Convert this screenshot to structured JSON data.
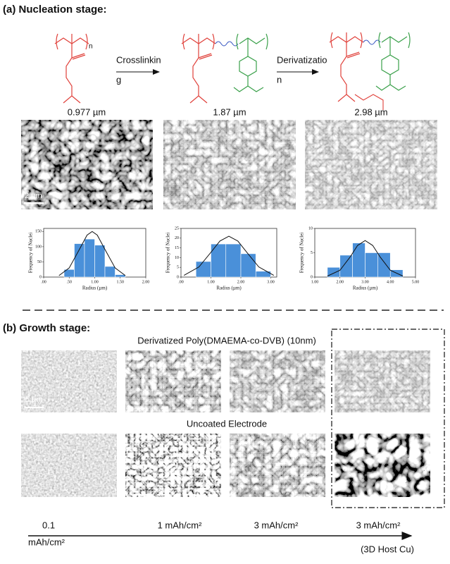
{
  "figure": {
    "nucleation": {
      "title": "(a) Nucleation stage:",
      "repeat_unit": "n",
      "arrows": [
        {
          "lines": [
            "Crosslinkin",
            "g"
          ]
        },
        {
          "lines": [
            "Derivatizatio",
            "n"
          ]
        }
      ],
      "thicknesses": [
        "0.977 µm",
        "1.87 µm",
        "2.98 µm"
      ],
      "scale_bar": "2 µm"
    },
    "growth": {
      "title": "(b)  Growth stage:",
      "coated_label": "Derivatized Poly(DMAEMA-co-DVB) (10nm)",
      "uncoated_label": "Uncoated Electrode",
      "scale_bar": "5 µm",
      "capacities": [
        {
          "lines": [
            "0.1",
            "mAh/cm²"
          ]
        },
        {
          "lines": [
            "1 mAh/cm²"
          ]
        },
        {
          "lines": [
            "3 mAh/cm²"
          ]
        },
        {
          "lines": [
            "3 mAh/cm²",
            "(3D Host Cu)"
          ]
        }
      ]
    }
  },
  "chart_data": [
    {
      "type": "histogram",
      "color": "#4a90d9",
      "xlabel": "Radius (µm)",
      "ylabel": "Frequency of Nuclei",
      "bins": [
        0.4,
        0.6,
        0.8,
        1.0,
        1.2,
        1.4,
        1.6
      ],
      "values": [
        25,
        110,
        125,
        105,
        35,
        8
      ],
      "fit": {
        "x": [
          0.3,
          0.5,
          0.7,
          0.85,
          0.95,
          1.05,
          1.2,
          1.4,
          1.6
        ],
        "y": [
          5,
          30,
          91,
          138,
          150,
          138,
          91,
          30,
          5
        ]
      },
      "xlim": [
        0,
        2
      ],
      "xticks": [
        {
          "value": 0,
          "label": ".00"
        },
        {
          "value": 0.5,
          "label": ".50"
        },
        {
          "value": 1,
          "label": "1.00"
        },
        {
          "value": 1.5,
          "label": "1.50"
        },
        {
          "value": 2,
          "label": "2.00"
        }
      ],
      "ylim": [
        0,
        160
      ],
      "yticks": [
        0,
        50,
        100,
        150
      ]
    },
    {
      "type": "histogram",
      "color": "#4a90d9",
      "xlabel": "Radius (µm)",
      "ylabel": "Frequency of Nuclei",
      "bins": [
        0.5,
        1.0,
        1.5,
        2.0,
        2.5,
        3.0
      ],
      "values": [
        8,
        17,
        17,
        12,
        3
      ],
      "fit": {
        "x": [
          0.1,
          0.6,
          1.0,
          1.3,
          1.6,
          1.9,
          2.2,
          2.6,
          3.1
        ],
        "y": [
          0.9,
          5.2,
          12.7,
          18.5,
          21,
          18.5,
          12.7,
          5.2,
          0.9
        ]
      },
      "xlim": [
        0,
        3.2
      ],
      "xticks": [
        {
          "value": 0,
          "label": ".00"
        },
        {
          "value": 1,
          "label": "1.00"
        },
        {
          "value": 2,
          "label": "2.00"
        },
        {
          "value": 3,
          "label": "3.00"
        }
      ],
      "ylim": [
        0,
        25
      ],
      "yticks": [
        0,
        5,
        10,
        15,
        20,
        25
      ]
    },
    {
      "type": "histogram",
      "color": "#4a90d9",
      "xlabel": "Radius (µm)",
      "ylabel": "Frequency of Nuclei",
      "bins": [
        1.5,
        2.0,
        2.5,
        3.0,
        3.5,
        4.0,
        4.5
      ],
      "values": [
        2,
        4.5,
        7,
        5,
        5,
        1.5
      ],
      "fit": {
        "x": [
          1.5,
          2.0,
          2.4,
          2.7,
          3.0,
          3.3,
          3.6,
          4.0,
          4.5
        ],
        "y": [
          0.2,
          1.4,
          4.1,
          6.5,
          7.5,
          6.5,
          4.1,
          1.4,
          0.2
        ]
      },
      "xlim": [
        1,
        5
      ],
      "xticks": [
        {
          "value": 1,
          "label": "1.00"
        },
        {
          "value": 2,
          "label": "2.00"
        },
        {
          "value": 3,
          "label": "3.00"
        },
        {
          "value": 4,
          "label": "4.00"
        },
        {
          "value": 5,
          "label": "5.00"
        }
      ],
      "ylim": [
        0,
        10
      ],
      "yticks": [
        0,
        5,
        10
      ]
    }
  ]
}
